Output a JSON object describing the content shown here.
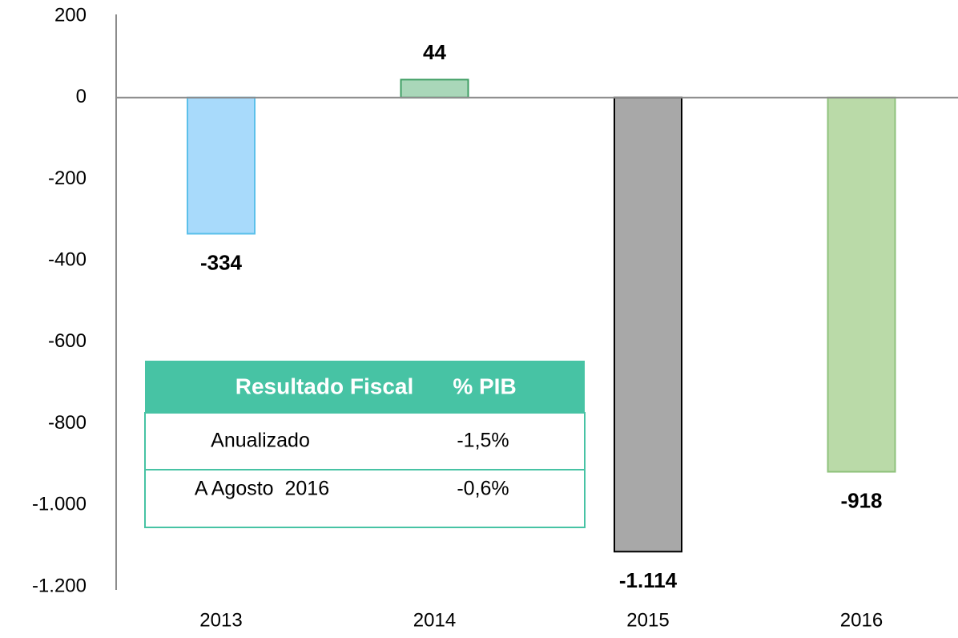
{
  "chart_data": {
    "type": "bar",
    "categories": [
      "2013",
      "2014",
      "2015",
      "2016"
    ],
    "values": [
      -334,
      44,
      -1114,
      -918
    ],
    "value_labels": [
      "-334",
      "44",
      "-1.114",
      "-918"
    ],
    "colors": [
      "#a8dafb",
      "#a9d7b9",
      "#a8a8a8",
      "#badaa8"
    ],
    "edge_colors": [
      "#5cc0ea",
      "#3d9d62",
      "#000000",
      "#8fc27c"
    ],
    "ylim": [
      -1200,
      200
    ],
    "yticks": [
      {
        "value": -1200,
        "label": "-1.200"
      },
      {
        "value": -1000,
        "label": "-1.000"
      },
      -800,
      -600,
      -400,
      -200,
      0,
      200
    ],
    "grid": false,
    "table": {
      "header": [
        "Resultado Fiscal",
        "% PIB"
      ],
      "rows": [
        [
          "Anualizado",
          "-1,5%"
        ],
        [
          "A Agosto  2016",
          "-0,6%"
        ]
      ]
    }
  }
}
